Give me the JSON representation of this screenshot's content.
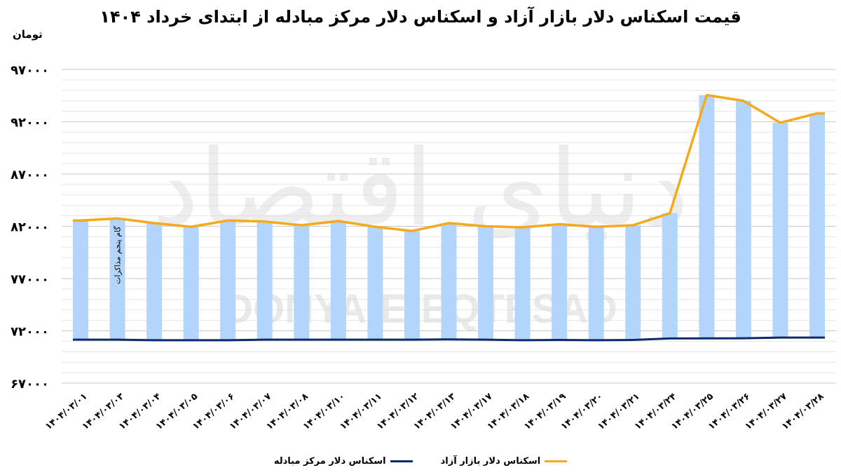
{
  "title": "قیمت اسکناس دلار بازار آزاد و اسکناس دلار مرکز مبادله از ابتدای خرداد ۱۴۰۴",
  "unit_label": "تومان",
  "watermark": {
    "fa": "دنیای اقتصاد",
    "en": "DONYA-E-EQTESAD"
  },
  "annotation": {
    "text": "گام پنجم مذاکرات",
    "category_index": 1
  },
  "colors": {
    "bars": "#b4d5fb",
    "free_market_line": "#f5a91c",
    "exchange_center_line": "#0d2a6b",
    "grid": "#d9d9d9"
  },
  "legend": [
    {
      "label": "اسکناس دلار بازار آزاد",
      "color": "#f5a91c"
    },
    {
      "label": "اسکناس دلار مرکز مبادله",
      "color": "#0d2a6b"
    }
  ],
  "chart_data": {
    "type": "bar+line",
    "title": "قیمت اسکناس دلار بازار آزاد و اسکناس دلار مرکز مبادله از ابتدای خرداد ۱۴۰۴",
    "ylabel": "تومان",
    "xlabel": "",
    "ylim": [
      67000,
      97000
    ],
    "yticks": [
      67000,
      72000,
      77000,
      82000,
      87000,
      92000,
      97000
    ],
    "ytick_labels": [
      "۶۷۰۰۰",
      "۷۲۰۰۰",
      "۷۷۰۰۰",
      "۸۲۰۰۰",
      "۸۷۰۰۰",
      "۹۲۰۰۰",
      "۹۷۰۰۰"
    ],
    "minor_grid_step": 1000,
    "grid": true,
    "legend_position": "bottom",
    "categories": [
      "۱۴۰۴/۰۳/۰۱",
      "۱۴۰۴/۰۳/۰۳",
      "۱۴۰۴/۰۳/۰۴",
      "۱۴۰۴/۰۳/۰۵",
      "۱۴۰۴/۰۳/۰۶",
      "۱۴۰۴/۰۳/۰۷",
      "۱۴۰۴/۰۳/۰۸",
      "۱۴۰۴/۰۳/۱۰",
      "۱۴۰۴/۰۳/۱۱",
      "۱۴۰۴/۰۳/۱۲",
      "۱۴۰۴/۰۳/۱۳",
      "۱۴۰۴/۰۳/۱۷",
      "۱۴۰۴/۰۳/۱۸",
      "۱۴۰۴/۰۳/۱۹",
      "۱۴۰۴/۰۳/۲۰",
      "۱۴۰۴/۰۳/۲۱",
      "۱۴۰۴/۰۳/۲۴",
      "۱۴۰۴/۰۳/۲۵",
      "۱۴۰۴/۰۳/۲۶",
      "۱۴۰۴/۰۳/۲۷",
      "۱۴۰۴/۰۳/۲۸"
    ],
    "series": [
      {
        "name": "اسکناس دلار بازار آزاد",
        "kind": "line+bar",
        "values": [
          82550,
          82750,
          82300,
          81950,
          82550,
          82450,
          82100,
          82500,
          81950,
          81550,
          82300,
          82000,
          81900,
          82200,
          81950,
          82100,
          83250,
          94550,
          94000,
          91900,
          92800
        ]
      },
      {
        "name": "اسکناس دلار مرکز مبادله",
        "kind": "line",
        "values": [
          71150,
          71150,
          71100,
          71100,
          71100,
          71150,
          71150,
          71150,
          71150,
          71150,
          71180,
          71150,
          71100,
          71130,
          71100,
          71130,
          71270,
          71280,
          71290,
          71350,
          71350
        ]
      }
    ]
  }
}
